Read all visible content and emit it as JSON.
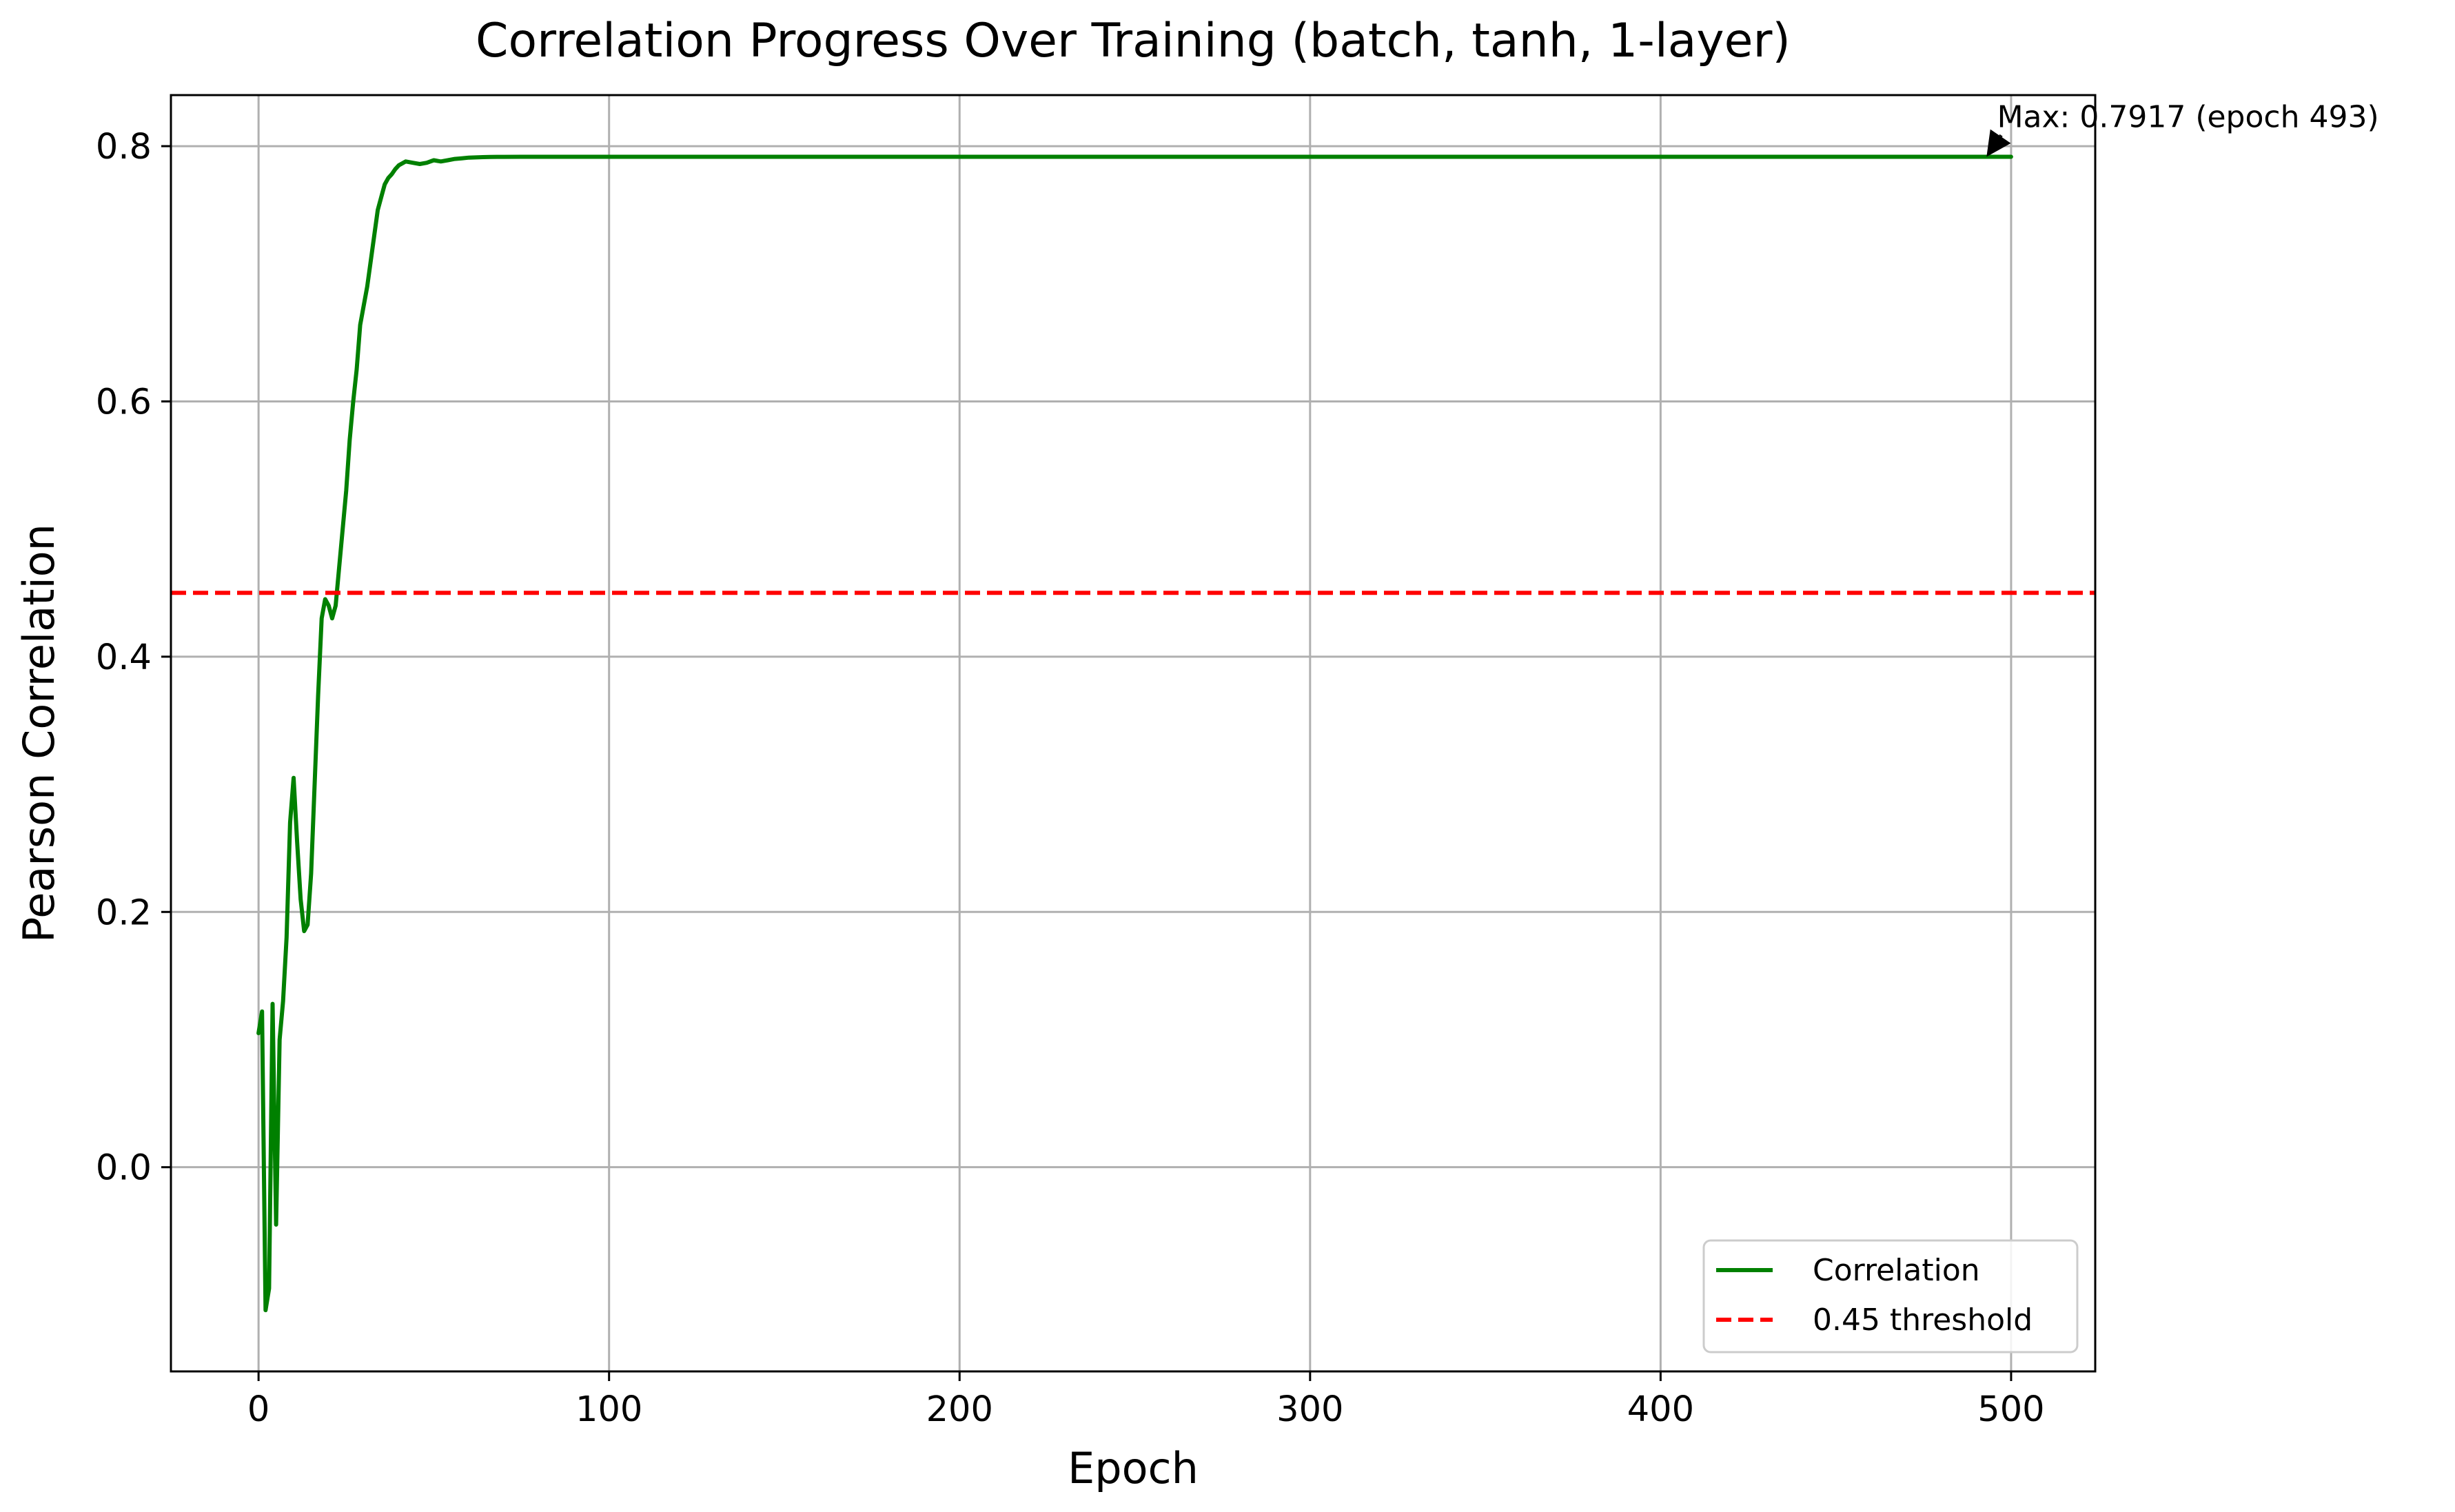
{
  "chart_data": {
    "type": "line",
    "title": "Correlation Progress Over Training (batch, tanh, 1-layer)",
    "xlabel": "Epoch",
    "ylabel": "Pearson Correlation",
    "xlim": [
      -25,
      524
    ],
    "ylim": [
      -0.16,
      0.84
    ],
    "x_ticks": [
      0,
      100,
      200,
      300,
      400,
      500
    ],
    "x_tick_labels": [
      "0",
      "100",
      "200",
      "300",
      "400",
      "500"
    ],
    "y_ticks": [
      0.0,
      0.2,
      0.4,
      0.6,
      0.8
    ],
    "y_tick_labels": [
      "0.0",
      "0.2",
      "0.4",
      "0.6",
      "0.8"
    ],
    "grid": true,
    "legend_position": "bottom-right",
    "series": [
      {
        "name": "Correlation",
        "color": "#008000",
        "style": "solid",
        "x": [
          0,
          1,
          2,
          3,
          4,
          5,
          6,
          7,
          8,
          9,
          10,
          11,
          12,
          13,
          14,
          15,
          16,
          17,
          18,
          19,
          20,
          21,
          22,
          23,
          24,
          25,
          26,
          27,
          28,
          29,
          30,
          31,
          32,
          33,
          34,
          35,
          36,
          37,
          38,
          39,
          40,
          42,
          44,
          46,
          48,
          50,
          52,
          54,
          56,
          58,
          60,
          62,
          64,
          66,
          68,
          70,
          75,
          80,
          85,
          90,
          100,
          150,
          200,
          250,
          300,
          350,
          400,
          450,
          493,
          500
        ],
        "y": [
          0.105,
          0.122,
          -0.112,
          -0.095,
          0.128,
          -0.045,
          0.1,
          0.13,
          0.18,
          0.27,
          0.305,
          0.255,
          0.21,
          0.185,
          0.19,
          0.23,
          0.3,
          0.37,
          0.43,
          0.445,
          0.44,
          0.43,
          0.44,
          0.47,
          0.5,
          0.53,
          0.57,
          0.6,
          0.625,
          0.66,
          0.675,
          0.69,
          0.71,
          0.73,
          0.75,
          0.76,
          0.77,
          0.775,
          0.778,
          0.782,
          0.785,
          0.788,
          0.787,
          0.786,
          0.787,
          0.789,
          0.788,
          0.789,
          0.79,
          0.7905,
          0.791,
          0.7912,
          0.7914,
          0.7915,
          0.7916,
          0.7916,
          0.7917,
          0.7917,
          0.7917,
          0.7917,
          0.7917,
          0.7917,
          0.7917,
          0.7917,
          0.7917,
          0.7917,
          0.7917,
          0.7917,
          0.7917,
          0.7917
        ]
      },
      {
        "name": "0.45 threshold",
        "color": "#ff0000",
        "style": "dashed",
        "y_constant": 0.45
      }
    ],
    "annotations": [
      {
        "text": "Max: 0.7917 (epoch 493)",
        "x": 493,
        "y": 0.7917,
        "text_x": 496,
        "text_y": 0.815
      }
    ]
  }
}
